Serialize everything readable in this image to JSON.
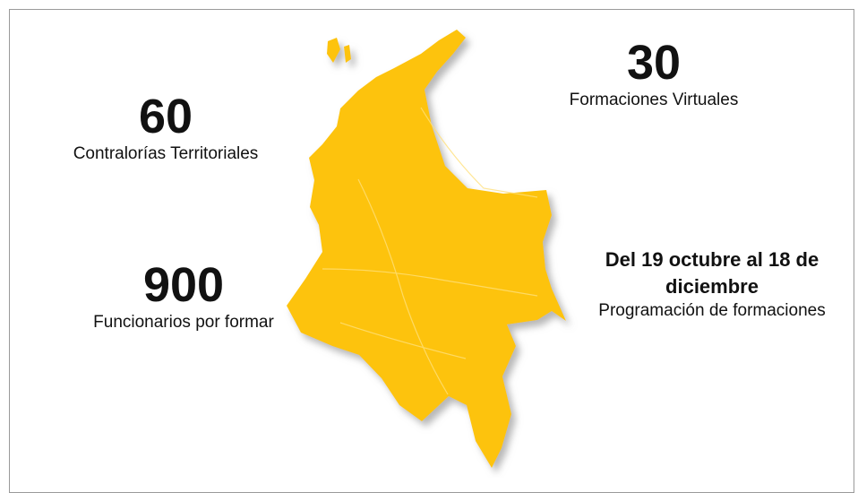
{
  "stats": [
    {
      "value": 60,
      "label": "Contralorías Territoriales"
    },
    {
      "value": 30,
      "label": "Formaciones Virtuales"
    },
    {
      "value": 900,
      "label": "Funcionarios por formar"
    },
    {
      "value": "Del 19 octubre al 18 de diciembre",
      "label": "Programación de formaciones"
    }
  ]
}
